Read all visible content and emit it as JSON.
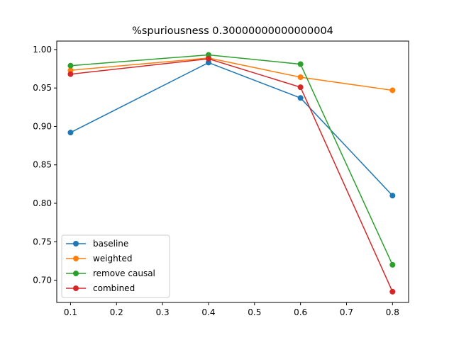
{
  "chart_data": {
    "type": "line",
    "title": "%spuriousness 0.30000000000000004",
    "xlabel": "",
    "ylabel": "",
    "x": [
      0.1,
      0.4,
      0.6,
      0.8
    ],
    "xlim": [
      0.07,
      0.835
    ],
    "ylim": [
      0.671,
      1.011
    ],
    "x_ticks": [
      0.1,
      0.2,
      0.3,
      0.4,
      0.5,
      0.6,
      0.7,
      0.8
    ],
    "x_tick_labels": [
      "0.1",
      "0.2",
      "0.3",
      "0.4",
      "0.5",
      "0.6",
      "0.7",
      "0.8"
    ],
    "y_ticks": [
      0.7,
      0.75,
      0.8,
      0.85,
      0.9,
      0.95,
      1.0
    ],
    "y_tick_labels": [
      "0.70",
      "0.75",
      "0.80",
      "0.85",
      "0.90",
      "0.95",
      "1.00"
    ],
    "grid": false,
    "legend_position": "lower-left",
    "series": [
      {
        "name": "baseline",
        "color": "#1f77b4",
        "values": [
          0.892,
          0.983,
          0.937,
          0.81
        ]
      },
      {
        "name": "weighted",
        "color": "#ff7f0e",
        "values": [
          0.973,
          0.989,
          0.964,
          0.947
        ]
      },
      {
        "name": "remove causal",
        "color": "#2ca02c",
        "values": [
          0.979,
          0.993,
          0.981,
          0.72
        ]
      },
      {
        "name": "combined",
        "color": "#d62728",
        "values": [
          0.968,
          0.988,
          0.951,
          0.685
        ]
      }
    ]
  }
}
